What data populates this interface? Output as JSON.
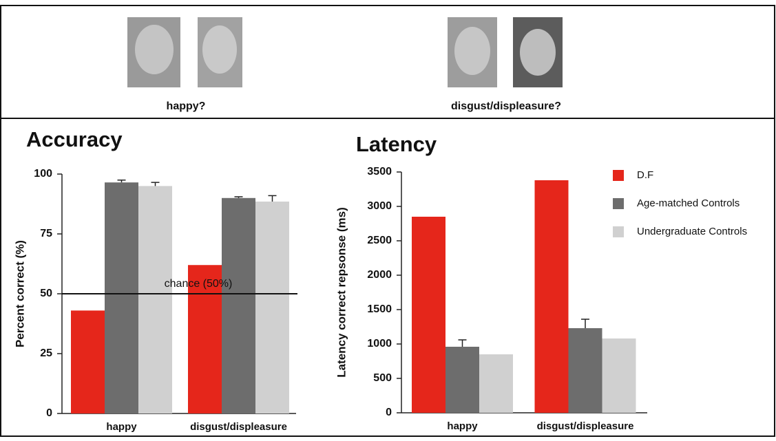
{
  "stimuli": {
    "labels": [
      "happy?",
      "disgust/displeasure?"
    ]
  },
  "chart_data": [
    {
      "type": "bar",
      "title": "Accuracy",
      "y_label": "Percent correct (%)",
      "categories": [
        "happy",
        "disgust/displeasure"
      ],
      "series": [
        {
          "color": "#e5261b",
          "values": [
            43,
            62
          ]
        },
        {
          "color": "#6d6d6d",
          "values": [
            96.5,
            90
          ],
          "errors": [
            1,
            0.5
          ]
        },
        {
          "color": "#d0d0d0",
          "values": [
            95,
            88.5
          ],
          "errors": [
            1.5,
            2.5
          ]
        }
      ],
      "ylim": [
        0,
        100
      ],
      "yticks": [
        0,
        25,
        50,
        75,
        100
      ],
      "reference_line": {
        "value": 50,
        "label": "chance (50%)"
      }
    },
    {
      "type": "bar",
      "title": "Latency",
      "y_label": "Latency correct repsonse (ms)",
      "categories": [
        "happy",
        "disgust/displeasure"
      ],
      "series": [
        {
          "name": "D.F",
          "color": "#e5261b",
          "values": [
            2850,
            3380
          ]
        },
        {
          "name": "Age-matched Controls",
          "color": "#6d6d6d",
          "values": [
            960,
            1230
          ],
          "errors": [
            100,
            130
          ]
        },
        {
          "name": "Undergraduate Controls",
          "color": "#d0d0d0",
          "values": [
            850,
            1080
          ]
        }
      ],
      "ylim": [
        0,
        3500
      ],
      "yticks": [
        0,
        500,
        1000,
        1500,
        2000,
        2500,
        3000,
        3500
      ],
      "legend": "right"
    }
  ]
}
